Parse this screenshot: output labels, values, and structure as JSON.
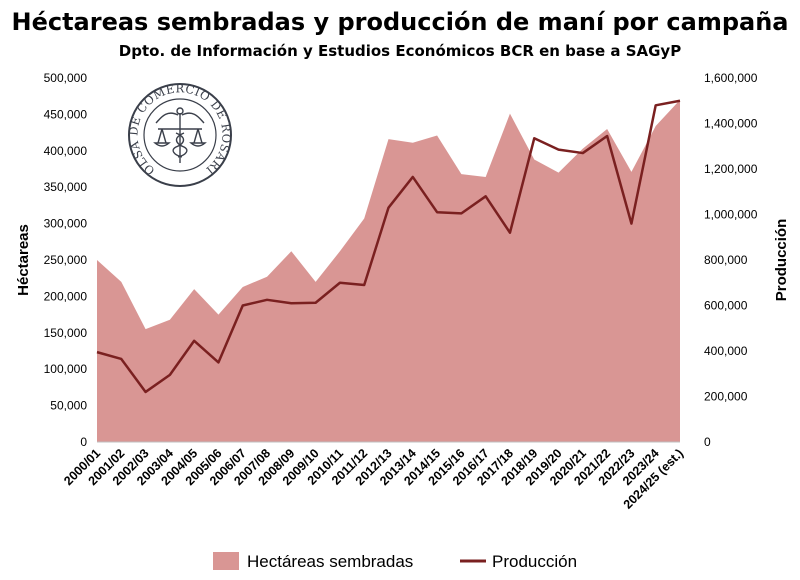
{
  "chart_data": {
    "type": "area+line",
    "title": "Héctareas sembradas y producción de maní por campaña",
    "subtitle": "Dpto. de Información y Estudios Económicos BCR en base a SAGyP",
    "categories": [
      "2000/01",
      "2001/02",
      "2002/03",
      "2003/04",
      "2004/05",
      "2005/06",
      "2006/07",
      "2007/08",
      "2008/09",
      "2009/10",
      "2010/11",
      "2011/12",
      "2012/13",
      "2013/14",
      "2014/15",
      "2015/16",
      "2016/17",
      "2017/18",
      "2018/19",
      "2019/20",
      "2020/21",
      "2021/22",
      "2022/23",
      "2023/24",
      "2024/25 (est.)"
    ],
    "series": [
      {
        "name": "Hectáreas sembradas",
        "kind": "area",
        "axis": "left",
        "color": "#d99694",
        "values": [
          250000,
          220000,
          155000,
          168000,
          210000,
          175000,
          213000,
          227000,
          262000,
          220000,
          262000,
          307000,
          416000,
          411000,
          421000,
          368000,
          364000,
          451000,
          388000,
          370000,
          403000,
          430000,
          371000,
          434000,
          470000
        ]
      },
      {
        "name": "Producción",
        "kind": "line",
        "axis": "right",
        "color": "#7a2020",
        "values": [
          395000,
          365000,
          220000,
          295000,
          445000,
          350000,
          600000,
          625000,
          610000,
          612000,
          700000,
          690000,
          1030000,
          1165000,
          1010000,
          1005000,
          1080000,
          920000,
          1335000,
          1285000,
          1270000,
          1345000,
          960000,
          1480000,
          1500000
        ]
      }
    ],
    "ylabel_left": "Héctareas",
    "ylabel_right": "Producción",
    "ylim_left": [
      0,
      500000
    ],
    "ylim_right": [
      0,
      1600000
    ],
    "yticks_left": [
      "0",
      "50,000",
      "100,000",
      "150,000",
      "200,000",
      "250,000",
      "300,000",
      "350,000",
      "400,000",
      "450,000",
      "500,000"
    ],
    "yticks_right": [
      "0",
      "200,000",
      "400,000",
      "600,000",
      "800,000",
      "1,000,000",
      "1,200,000",
      "1,400,000",
      "1,600,000"
    ],
    "legend": [
      "Hectáreas sembradas",
      "Producción"
    ],
    "legend_position": "bottom"
  },
  "logo": {
    "text": "BOLSA DE COMERCIO DE ROSARIO",
    "color": "#3a3f4a"
  }
}
